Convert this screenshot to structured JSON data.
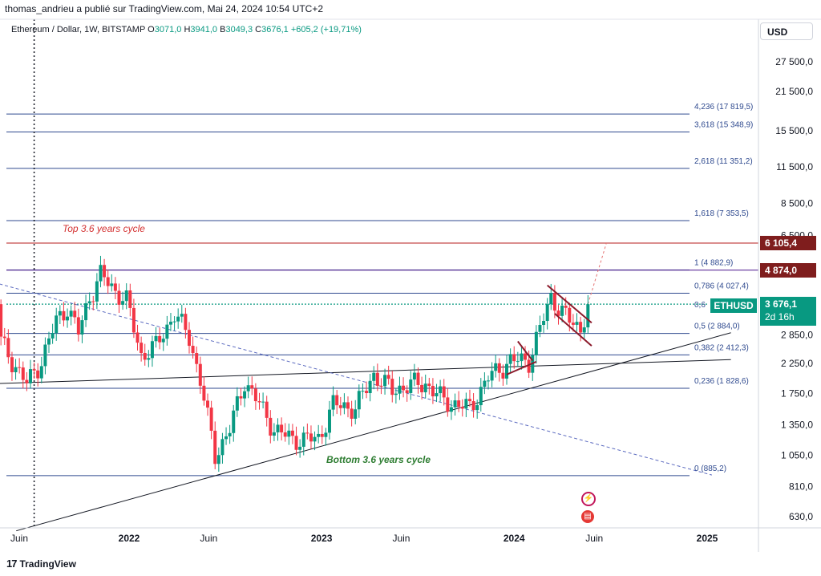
{
  "header": "thomas_andrieu a publié sur TradingView.com, Mai 24, 2024 10:54 UTC+2",
  "symbol": {
    "name": "Ethereum / Dollar, 1W, BITSTAMP",
    "open_label": "O",
    "open": "3071,0",
    "high_label": "H",
    "high": "3941,0",
    "low_label": "B",
    "low": "3049,3",
    "close_label": "C",
    "close": "3676,1",
    "change": "+605,2 (+19,71%)"
  },
  "currency_button": "USD",
  "footer": {
    "brand": "TradingView",
    "logo": "17"
  },
  "colors": {
    "up": "#089981",
    "down": "#f23645",
    "fib": "#2f4a8f",
    "cycle": "#d32f2f",
    "channel": "#8b1a2b",
    "tag_6105": "#7f1d1d",
    "tag_4874": "#7f1d1d",
    "tag_eth": "#089981"
  },
  "price_tags": {
    "top": "6 105,4",
    "mid": "4 874,0",
    "eth": "3 676,1",
    "eth_time": "2d 16h",
    "eth_label": "ETHUSD"
  },
  "annotations": {
    "top_cycle": "Top 3.6 years cycle",
    "bottom_cycle": "Bottom 3.6 years cycle"
  },
  "icons": [
    "lightning-icon",
    "us-flag-icon"
  ],
  "chart_data": {
    "type": "candlestick",
    "title": "Ethereum / Dollar, 1W, BITSTAMP",
    "yscale": "log",
    "ylim": [
      560,
      38000
    ],
    "y_ticks": [
      "27 500,0",
      "21 500,0",
      "15 500,0",
      "11 500,0",
      "8 500,0",
      "6 500,0",
      "2 850,0",
      "2 250,0",
      "1 750,0",
      "1 350,0",
      "1 050,0",
      "810,0",
      "630,0"
    ],
    "y_tick_values": [
      27500,
      21500,
      15500,
      11500,
      8500,
      6500,
      2850,
      2250,
      1750,
      1350,
      1050,
      810,
      630
    ],
    "x_ticks": [
      "Juin",
      "2022",
      "Juin",
      "2023",
      "Juin",
      "2024",
      "Juin",
      "2025"
    ],
    "x_tick_dates": [
      "2021-06-01",
      "2022-01-01",
      "2022-06-01",
      "2023-01-01",
      "2023-06-01",
      "2024-01-01",
      "2024-06-01",
      "2025-01-01"
    ],
    "fib_levels": [
      {
        "label": "4,236 (17 819,5)",
        "value": 17819.5
      },
      {
        "label": "3,618 (15 348,9)",
        "value": 15348.9
      },
      {
        "label": "2,618 (11 351,2)",
        "value": 11351.2
      },
      {
        "label": "1,618 (7 353,5)",
        "value": 7353.5
      },
      {
        "label": "1 (4 882,9)",
        "value": 4882.9
      },
      {
        "label": "0,786 (4 027,4)",
        "value": 4027.4
      },
      {
        "label": "0,6",
        "value": 3676.1
      },
      {
        "label": "0,5 (2 884,0)",
        "value": 2884.0
      },
      {
        "label": "0,382 (2 412,3)",
        "value": 2412.3
      },
      {
        "label": "0,236 (1 828,6)",
        "value": 1828.6
      },
      {
        "label": "0 (885,2)",
        "value": 885.2
      }
    ],
    "horizontal_lines": [
      {
        "value": 6105.4
      },
      {
        "value": 4874.0
      }
    ],
    "series": [
      {
        "name": "ETHUSD",
        "anchors": [
          {
            "date": "2021-05-03",
            "close": 2700
          },
          {
            "date": "2021-05-24",
            "close": 2300
          },
          {
            "date": "2021-06-21",
            "close": 1900
          },
          {
            "date": "2021-07-19",
            "close": 2300
          },
          {
            "date": "2021-08-16",
            "close": 3200
          },
          {
            "date": "2021-09-06",
            "close": 3600
          },
          {
            "date": "2021-09-27",
            "close": 2900
          },
          {
            "date": "2021-10-18",
            "close": 3900
          },
          {
            "date": "2021-11-08",
            "close": 4700
          },
          {
            "date": "2021-12-06",
            "close": 4100
          },
          {
            "date": "2021-12-27",
            "close": 3800
          },
          {
            "date": "2022-01-24",
            "close": 2400
          },
          {
            "date": "2022-02-21",
            "close": 2600
          },
          {
            "date": "2022-03-28",
            "close": 3400
          },
          {
            "date": "2022-04-25",
            "close": 2800
          },
          {
            "date": "2022-05-16",
            "close": 1950
          },
          {
            "date": "2022-06-13",
            "close": 1050
          },
          {
            "date": "2022-07-11",
            "close": 1300
          },
          {
            "date": "2022-08-08",
            "close": 1950
          },
          {
            "date": "2022-09-05",
            "close": 1600
          },
          {
            "date": "2022-10-03",
            "close": 1300
          },
          {
            "date": "2022-11-07",
            "close": 1200
          },
          {
            "date": "2022-12-26",
            "close": 1200
          },
          {
            "date": "2023-01-23",
            "close": 1600
          },
          {
            "date": "2023-03-06",
            "close": 1550
          },
          {
            "date": "2023-04-10",
            "close": 2050
          },
          {
            "date": "2023-05-15",
            "close": 1800
          },
          {
            "date": "2023-06-26",
            "close": 1900
          },
          {
            "date": "2023-07-17",
            "close": 1900
          },
          {
            "date": "2023-08-21",
            "close": 1650
          },
          {
            "date": "2023-10-09",
            "close": 1550
          },
          {
            "date": "2023-11-13",
            "close": 2000
          },
          {
            "date": "2023-12-25",
            "close": 2300
          },
          {
            "date": "2024-01-29",
            "close": 2300
          },
          {
            "date": "2024-03-11",
            "close": 3900
          },
          {
            "date": "2024-04-15",
            "close": 3200
          },
          {
            "date": "2024-05-06",
            "close": 3000
          },
          {
            "date": "2024-05-20",
            "close": 3676.1
          }
        ]
      }
    ],
    "trend_lines": [
      {
        "name": "bottom-cycle-support",
        "from": {
          "date": "2021-06-01",
          "value": 560
        },
        "to": {
          "date": "2025-02-15",
          "value": 2900
        },
        "style": "solid"
      },
      {
        "name": "long-resistance",
        "from": {
          "date": "2021-04-20",
          "value": 1900
        },
        "to": {
          "date": "2025-02-15",
          "value": 2320
        },
        "style": "solid"
      },
      {
        "name": "dashed-downtrend",
        "from": {
          "date": "2021-04-20",
          "value": 4400
        },
        "to": {
          "date": "2025-01-10",
          "value": 890
        },
        "style": "dashed"
      },
      {
        "name": "projection",
        "from": {
          "date": "2024-05-20",
          "value": 3676.1
        },
        "to": {
          "date": "2024-06-24",
          "value": 6105.4
        },
        "style": "dashed"
      }
    ],
    "cycle_markers": [
      {
        "name": "top-cycle-line",
        "date": "2021-07-05",
        "style": "dotted"
      }
    ],
    "channels": [
      {
        "name": "bull-flag-upper",
        "from": {
          "date": "2024-03-04",
          "value": 4300
        },
        "to": {
          "date": "2024-05-27",
          "value": 3150
        }
      },
      {
        "name": "bull-flag-lower",
        "from": {
          "date": "2024-03-18",
          "value": 3400
        },
        "to": {
          "date": "2024-05-27",
          "value": 2600
        }
      },
      {
        "name": "small-flag-upper",
        "from": {
          "date": "2024-01-08",
          "value": 2700
        },
        "to": {
          "date": "2024-02-05",
          "value": 2300
        }
      },
      {
        "name": "small-flag-lower",
        "from": {
          "date": "2023-12-18",
          "value": 2050
        },
        "to": {
          "date": "2024-02-12",
          "value": 2280
        }
      }
    ],
    "grid": false,
    "legend": "top-left"
  }
}
